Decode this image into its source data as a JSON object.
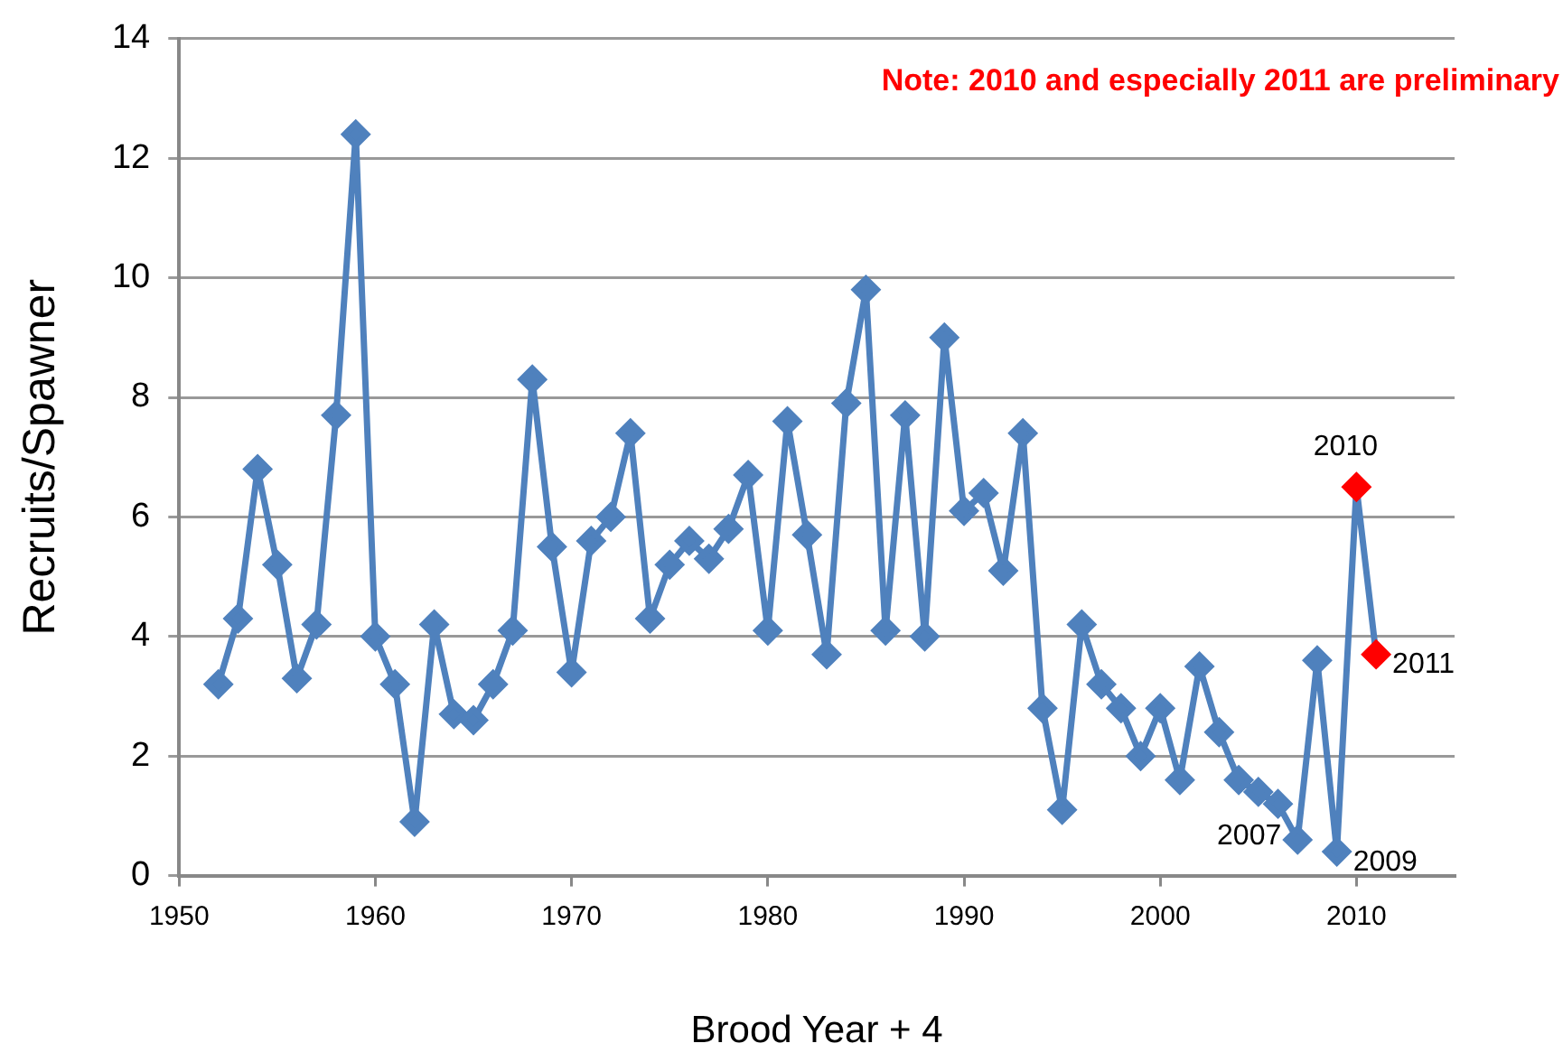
{
  "chart_data": {
    "type": "line",
    "xlabel": "Brood Year + 4",
    "ylabel": "Recruits/Spawner",
    "x": [
      1952,
      1953,
      1954,
      1955,
      1956,
      1957,
      1958,
      1959,
      1960,
      1961,
      1962,
      1963,
      1964,
      1965,
      1966,
      1967,
      1968,
      1969,
      1970,
      1971,
      1972,
      1973,
      1974,
      1975,
      1976,
      1977,
      1978,
      1979,
      1980,
      1981,
      1982,
      1983,
      1984,
      1985,
      1986,
      1987,
      1988,
      1989,
      1990,
      1991,
      1992,
      1993,
      1994,
      1995,
      1996,
      1997,
      1998,
      1999,
      2000,
      2001,
      2002,
      2003,
      2004,
      2005,
      2006,
      2007,
      2008,
      2009,
      2010,
      2011
    ],
    "series": [
      {
        "color": "#4f81bd",
        "values": [
          3.2,
          4.3,
          6.8,
          5.2,
          3.3,
          4.2,
          7.7,
          12.4,
          4.0,
          3.2,
          0.9,
          4.2,
          2.7,
          2.6,
          3.2,
          4.1,
          8.3,
          5.5,
          3.4,
          5.6,
          6.0,
          7.4,
          4.3,
          5.2,
          5.6,
          5.3,
          5.8,
          6.7,
          4.1,
          7.6,
          5.7,
          3.7,
          7.9,
          9.8,
          4.1,
          7.7,
          4.0,
          9.0,
          6.1,
          6.4,
          5.1,
          7.4,
          2.8,
          1.1,
          4.2,
          3.2,
          2.8,
          2.0,
          2.8,
          1.6,
          3.5,
          2.4,
          1.6,
          1.4,
          1.2,
          0.6,
          3.6,
          0.4,
          6.5,
          3.7
        ],
        "colors": [
          "#4f81bd",
          "#4f81bd",
          "#4f81bd",
          "#4f81bd",
          "#4f81bd",
          "#4f81bd",
          "#4f81bd",
          "#4f81bd",
          "#4f81bd",
          "#4f81bd",
          "#4f81bd",
          "#4f81bd",
          "#4f81bd",
          "#4f81bd",
          "#4f81bd",
          "#4f81bd",
          "#4f81bd",
          "#4f81bd",
          "#4f81bd",
          "#4f81bd",
          "#4f81bd",
          "#4f81bd",
          "#4f81bd",
          "#4f81bd",
          "#4f81bd",
          "#4f81bd",
          "#4f81bd",
          "#4f81bd",
          "#4f81bd",
          "#4f81bd",
          "#4f81bd",
          "#4f81bd",
          "#4f81bd",
          "#4f81bd",
          "#4f81bd",
          "#4f81bd",
          "#4f81bd",
          "#4f81bd",
          "#4f81bd",
          "#4f81bd",
          "#4f81bd",
          "#4f81bd",
          "#4f81bd",
          "#4f81bd",
          "#4f81bd",
          "#4f81bd",
          "#4f81bd",
          "#4f81bd",
          "#4f81bd",
          "#4f81bd",
          "#4f81bd",
          "#4f81bd",
          "#4f81bd",
          "#4f81bd",
          "#4f81bd",
          "#4f81bd",
          "#4f81bd",
          "#4f81bd",
          "#ff0000",
          "#ff0000"
        ]
      }
    ],
    "xlim": [
      1950,
      2015
    ],
    "xticks": [
      1950,
      1960,
      1970,
      1980,
      1990,
      2000,
      2010
    ],
    "ylim": [
      0,
      14
    ],
    "yticks": [
      0,
      2,
      4,
      6,
      8,
      10,
      12,
      14
    ],
    "grid": "y",
    "marker": "diamond",
    "legend": false,
    "annotations": [
      "Note: 2010 and especially 2011 are preliminary",
      {
        "text": "2007",
        "x": 2007,
        "y": 0.6
      },
      {
        "text": "2009",
        "x": 2009,
        "y": 0.4
      },
      {
        "text": "2010",
        "x": 2010,
        "y": 6.5
      },
      {
        "text": "2011",
        "x": 2011,
        "y": 3.7
      }
    ]
  }
}
